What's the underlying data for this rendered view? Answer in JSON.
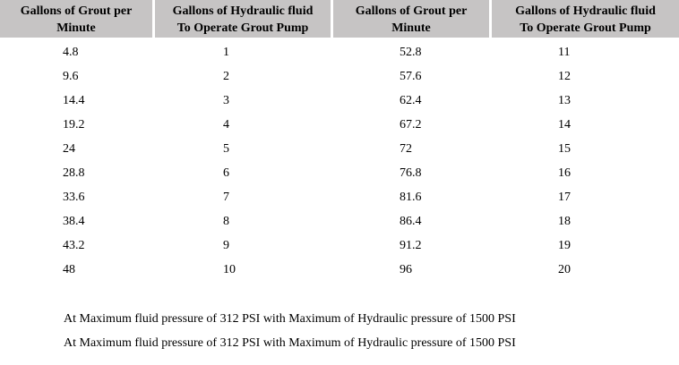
{
  "table": {
    "headers": [
      [
        "Gallons of Grout per",
        "Minute"
      ],
      [
        "Gallons of Hydraulic fluid",
        "To Operate Grout Pump"
      ],
      [
        "Gallons of Grout per",
        "Minute"
      ],
      [
        "Gallons of Hydraulic fluid",
        "To Operate Grout Pump"
      ]
    ],
    "rows": [
      [
        "4.8",
        "1",
        "52.8",
        "11"
      ],
      [
        "9.6",
        "2",
        "57.6",
        "12"
      ],
      [
        "14.4",
        "3",
        "62.4",
        "13"
      ],
      [
        "19.2",
        "4",
        "67.2",
        "14"
      ],
      [
        "24",
        "5",
        "72",
        "15"
      ],
      [
        "28.8",
        "6",
        "76.8",
        "16"
      ],
      [
        "33.6",
        "7",
        "81.6",
        "17"
      ],
      [
        "38.4",
        "8",
        "86.4",
        "18"
      ],
      [
        "43.2",
        "9",
        "91.2",
        "19"
      ],
      [
        "48",
        "10",
        "96",
        "20"
      ]
    ]
  },
  "notes": [
    "At Maximum fluid pressure of 312 PSI with Maximum of Hydraulic pressure of 1500 PSI",
    "At Maximum fluid pressure of 312 PSI with Maximum of Hydraulic pressure of 1500 PSI"
  ]
}
